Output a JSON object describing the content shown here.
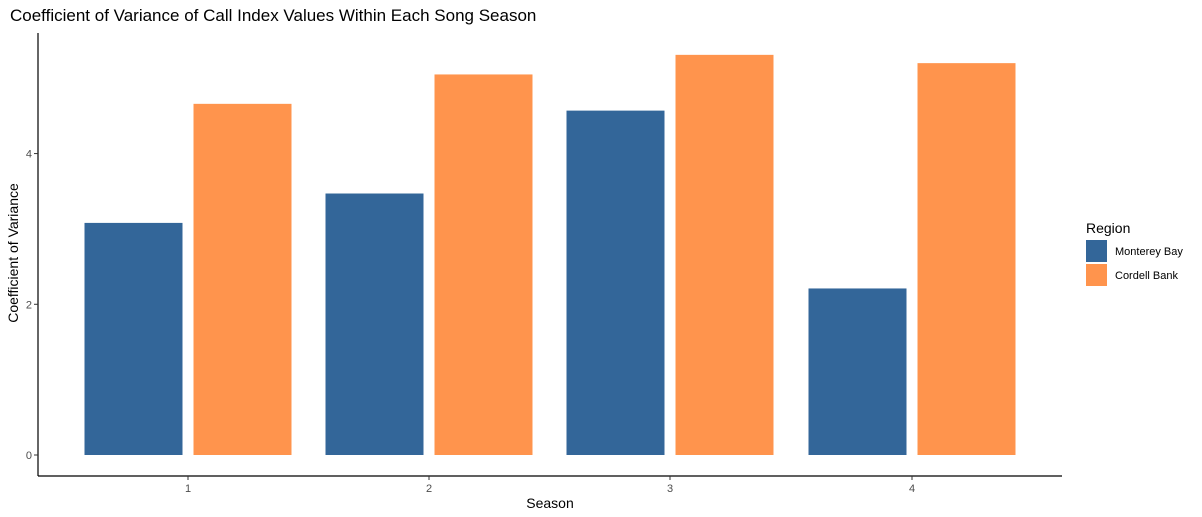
{
  "chart_data": {
    "type": "bar",
    "title": "Coefficient of Variance of Call Index Values Within Each Song Season",
    "xlabel": "Season",
    "ylabel": "Coefficient of Variance",
    "categories": [
      "1",
      "2",
      "3",
      "4"
    ],
    "series": [
      {
        "name": "Monterey Bay",
        "color": "#336699",
        "values": [
          3.08,
          3.47,
          4.57,
          2.21
        ]
      },
      {
        "name": "Cordell Bank",
        "color": "#FF944D",
        "values": [
          4.66,
          5.05,
          5.31,
          5.2
        ]
      }
    ],
    "ylim": [
      0,
      5.6
    ],
    "yticks": [
      "0",
      "2",
      "4"
    ],
    "legend": {
      "title": "Region",
      "placement": "right"
    },
    "grid": false
  }
}
